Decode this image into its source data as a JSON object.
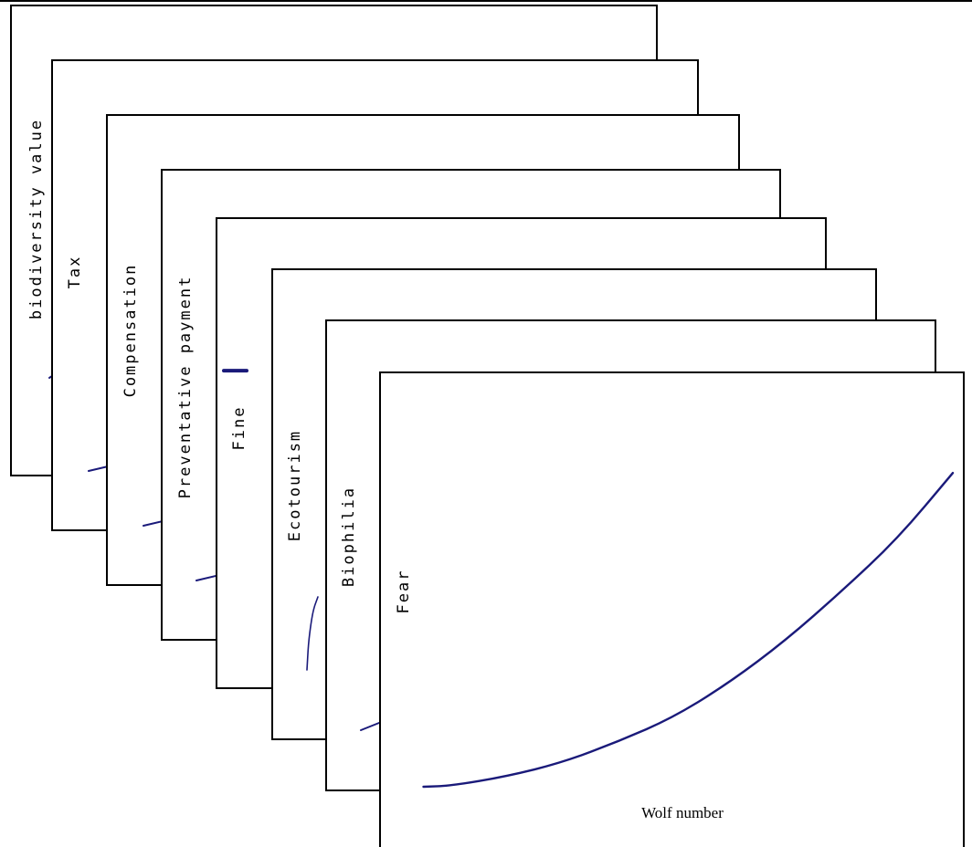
{
  "chart_data": {
    "type": "line",
    "layout": "stacked-offset-panels",
    "xlabel": "Wolf number",
    "line_color": "#1a1a7a",
    "panels": [
      {
        "name": "biodiversity value",
        "x": [
          0,
          0.02
        ],
        "y": [
          0.0,
          0.02
        ]
      },
      {
        "name": "Tax",
        "x": [
          0,
          0.07
        ],
        "y": [
          0.0,
          0.035
        ]
      },
      {
        "name": "Compensation",
        "x": [
          0,
          0.07
        ],
        "y": [
          0.0,
          0.035
        ]
      },
      {
        "name": "Preventative payment",
        "x": [
          0,
          0.07
        ],
        "y": [
          0.0,
          0.035
        ]
      },
      {
        "name": "Fine",
        "x": [
          0.05,
          0.1
        ],
        "y": [
          0.65,
          0.65
        ]
      },
      {
        "name": "Ecotourism",
        "x": [
          0,
          0.01,
          0.03,
          0.05,
          0.08
        ],
        "y": [
          0.0,
          0.07,
          0.13,
          0.17,
          0.2
        ]
      },
      {
        "name": "Biophilia",
        "x": [
          0,
          0.03,
          0.06
        ],
        "y": [
          0.0,
          0.02,
          0.04
        ]
      },
      {
        "name": "Fear",
        "x": [
          0.05,
          0.1,
          0.2,
          0.3,
          0.4,
          0.5,
          0.6,
          0.7,
          0.8,
          0.9,
          1.0
        ],
        "y": [
          0.0,
          0.003,
          0.03,
          0.07,
          0.13,
          0.2,
          0.3,
          0.42,
          0.56,
          0.71,
          0.9
        ]
      }
    ]
  }
}
